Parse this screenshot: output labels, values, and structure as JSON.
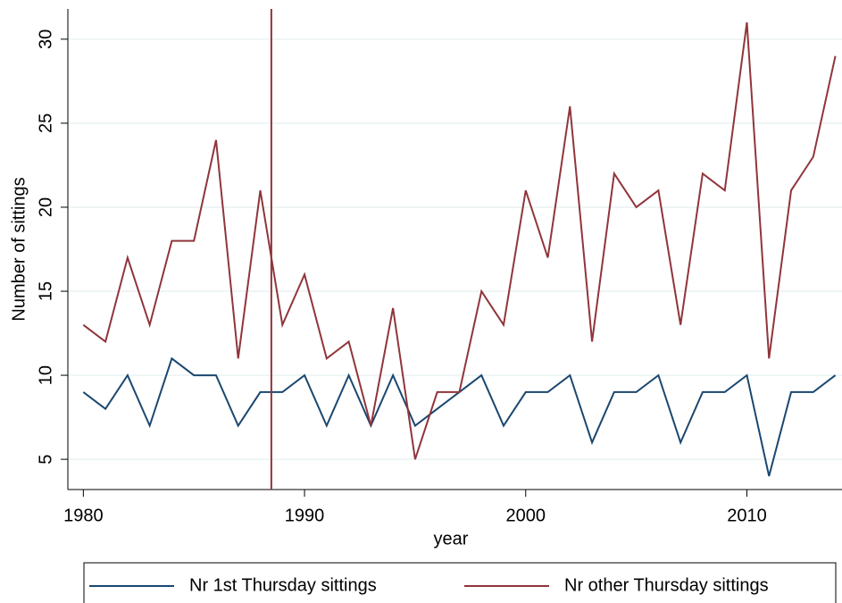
{
  "chart_data": {
    "type": "line",
    "x_label": "year",
    "y_label": "Number of sittings",
    "x": [
      1980,
      1981,
      1982,
      1983,
      1984,
      1985,
      1986,
      1987,
      1988,
      1989,
      1990,
      1991,
      1992,
      1993,
      1994,
      1995,
      1996,
      1997,
      1998,
      1999,
      2000,
      2001,
      2002,
      2003,
      2004,
      2005,
      2006,
      2007,
      2008,
      2009,
      2010,
      2011,
      2012,
      2013,
      2014
    ],
    "series": [
      {
        "name": "Nr 1st Thursday sittings",
        "color": "#1a476f",
        "values": [
          9,
          8,
          10,
          7,
          11,
          10,
          10,
          7,
          9,
          9,
          10,
          7,
          10,
          7,
          10,
          7,
          8,
          9,
          10,
          7,
          9,
          9,
          10,
          6,
          9,
          9,
          10,
          6,
          9,
          9,
          10,
          4,
          9,
          9,
          10
        ]
      },
      {
        "name": "Nr other Thursday sittings",
        "color": "#90353b",
        "values": [
          13,
          12,
          17,
          13,
          18,
          18,
          24,
          11,
          21,
          13,
          16,
          11,
          12,
          7,
          14,
          5,
          9,
          9,
          15,
          13,
          21,
          17,
          26,
          12,
          22,
          20,
          21,
          13,
          22,
          21,
          31,
          11,
          21,
          23,
          29
        ]
      }
    ],
    "vline": 1988.5,
    "vline_color": "#90353b",
    "xlim": [
      1979.3,
      2014.3
    ],
    "xticks": [
      1980,
      1990,
      2000,
      2010
    ],
    "ylim": [
      3.2,
      31.8
    ],
    "yticks": [
      5,
      10,
      15,
      20,
      25,
      30
    ],
    "grid": true,
    "legend": "bottom"
  }
}
